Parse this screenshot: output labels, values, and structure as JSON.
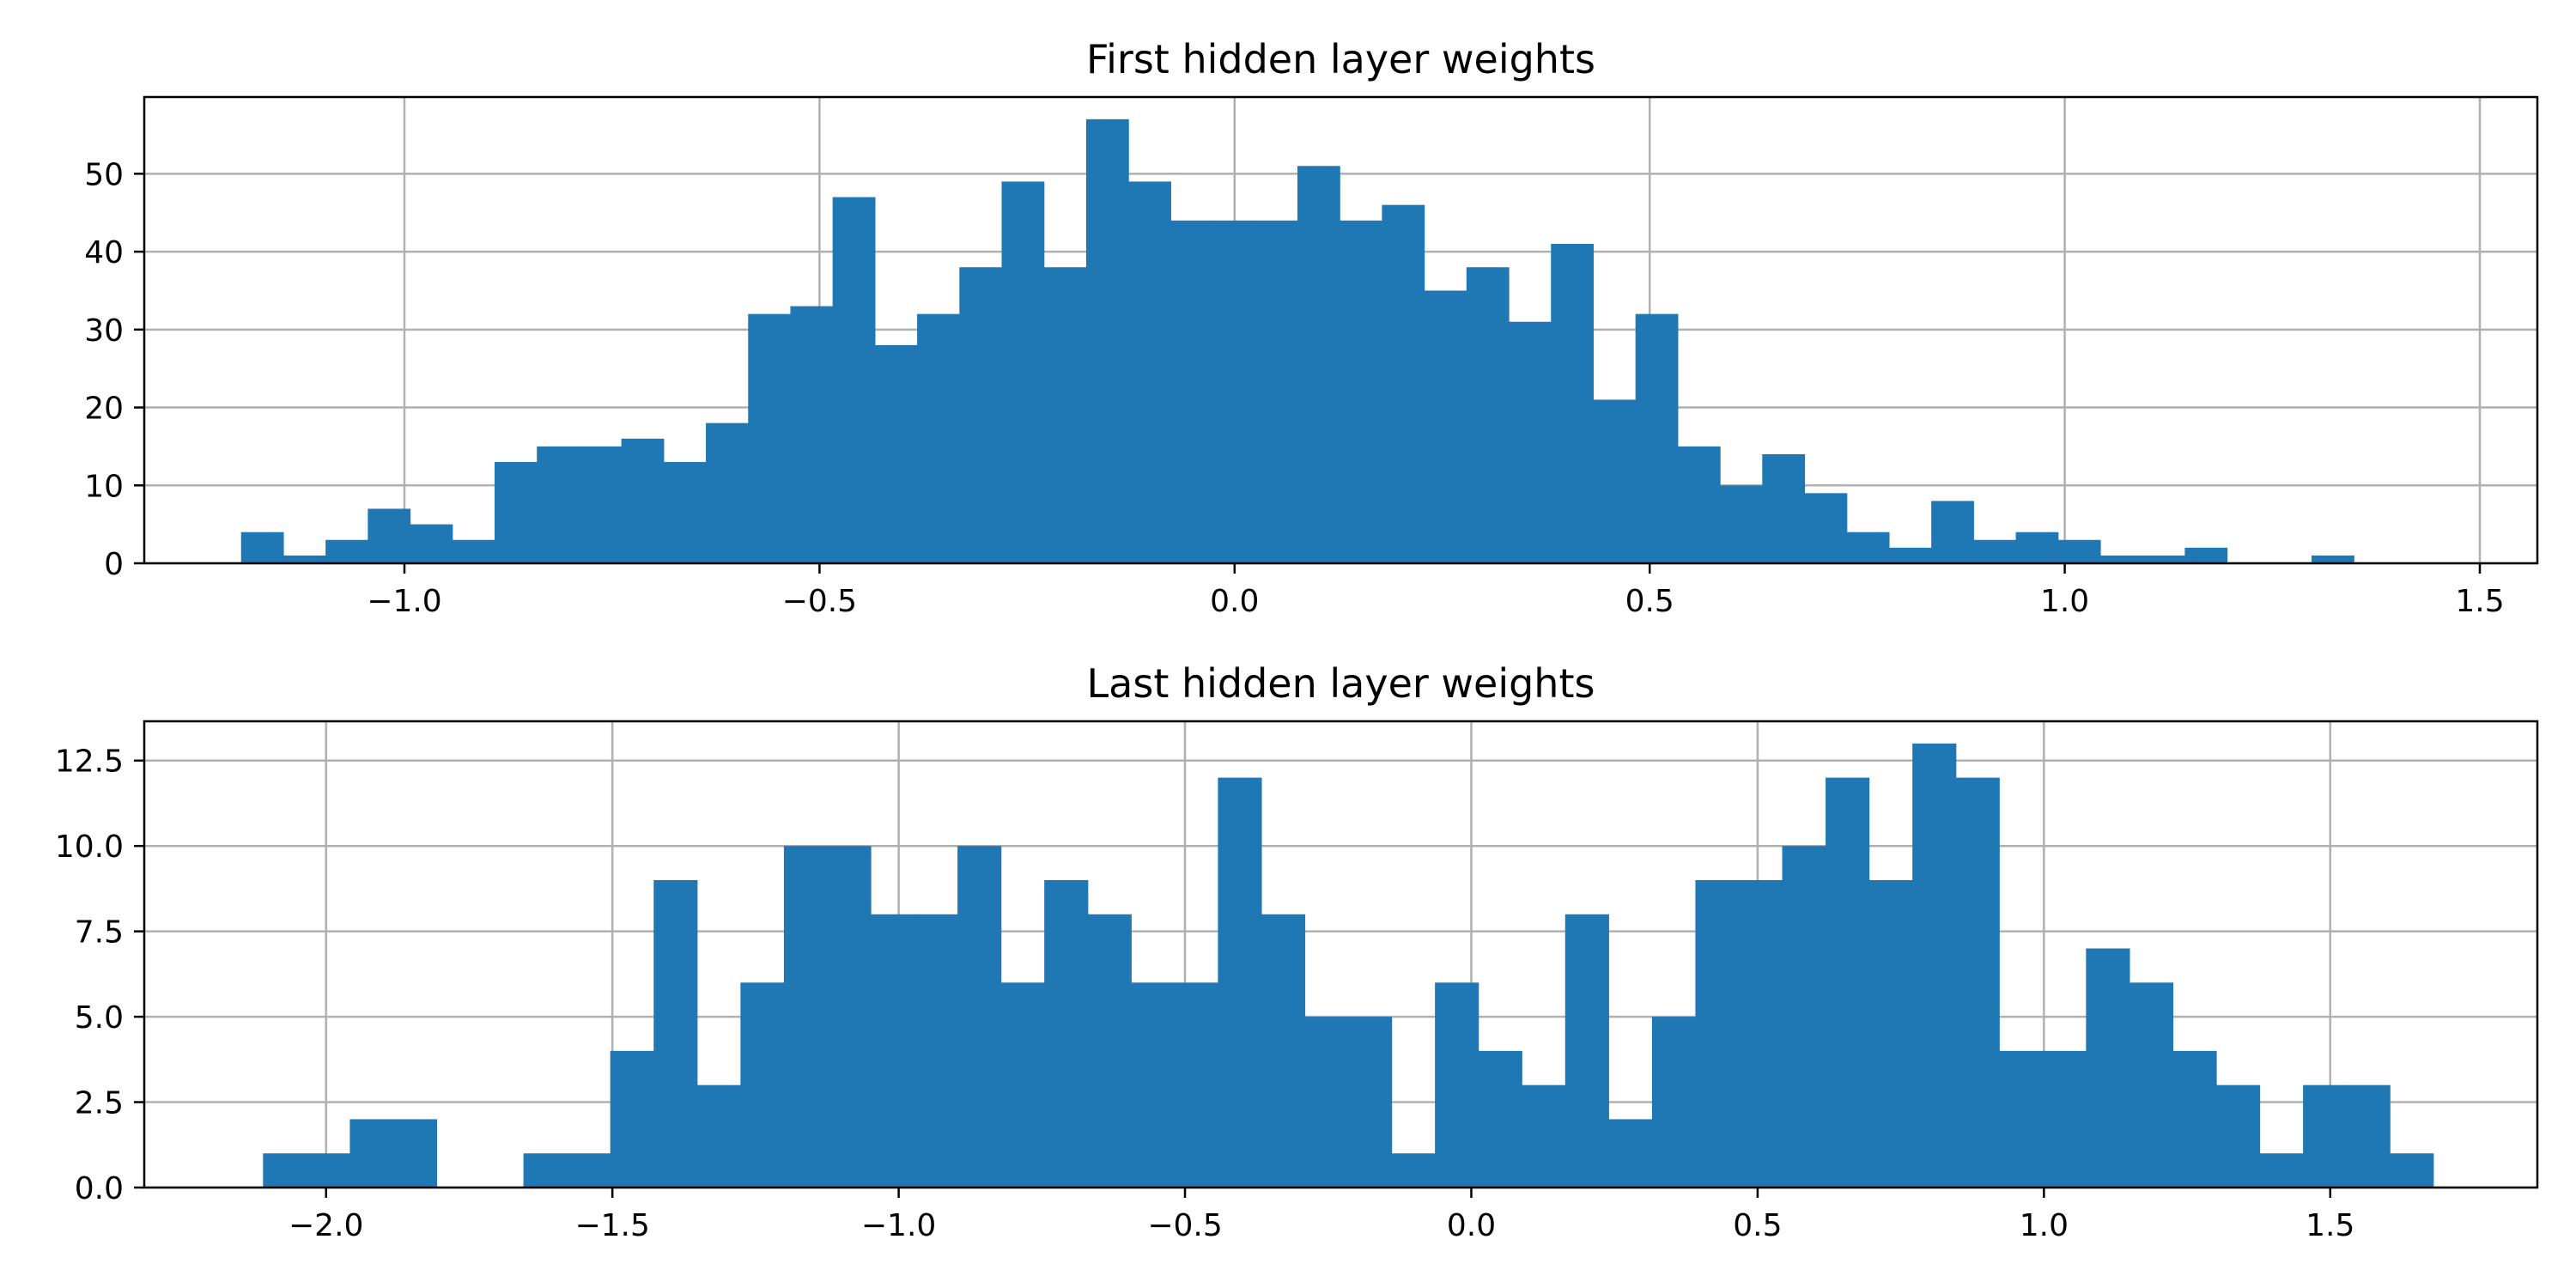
{
  "chart_data": [
    {
      "type": "bar",
      "title": "First hidden layer weights",
      "xlabel": "",
      "ylabel": "",
      "xlim": [
        -1.3134,
        1.5693
      ],
      "ylim": [
        0,
        59.85
      ],
      "grid": true,
      "bar_color": "#1f77b4",
      "bin_start": -1.1968,
      "bin_width": 0.0509,
      "values": [
        4,
        1,
        3,
        7,
        5,
        3,
        13,
        15,
        15,
        16,
        13,
        18,
        32,
        33,
        47,
        28,
        32,
        38,
        49,
        38,
        57,
        49,
        44,
        44,
        44,
        51,
        44,
        46,
        35,
        38,
        31,
        41,
        21,
        32,
        15,
        10,
        14,
        9,
        4,
        2,
        8,
        3,
        4,
        3,
        1,
        1,
        2,
        0,
        0,
        1
      ],
      "x_ticks": [
        -1.0,
        -0.5,
        0.0,
        0.5,
        1.0,
        1.5
      ],
      "x_tick_labels": [
        "−1.0",
        "−0.5",
        "0.0",
        "0.5",
        "1.0",
        "1.5"
      ],
      "y_ticks": [
        0,
        10,
        20,
        30,
        40,
        50
      ],
      "y_tick_labels": [
        "0",
        "10",
        "20",
        "30",
        "40",
        "50"
      ]
    },
    {
      "type": "bar",
      "title": "Last hidden layer weights",
      "xlabel": "",
      "ylabel": "",
      "xlim": [
        -2.3175,
        1.8617
      ],
      "ylim": [
        0,
        13.65
      ],
      "grid": true,
      "bar_color": "#1f77b4",
      "bin_start": -2.1101,
      "bin_width": 0.0758,
      "values": [
        1,
        1,
        2,
        2,
        0,
        0,
        1,
        1,
        4,
        9,
        3,
        6,
        10,
        10,
        8,
        8,
        10,
        6,
        9,
        8,
        6,
        6,
        12,
        8,
        5,
        5,
        1,
        6,
        4,
        3,
        8,
        2,
        5,
        9,
        9,
        10,
        12,
        9,
        13,
        12,
        4,
        4,
        7,
        6,
        4,
        3,
        1,
        3,
        3,
        1
      ],
      "x_ticks": [
        -2.0,
        -1.5,
        -1.0,
        -0.5,
        0.0,
        0.5,
        1.0,
        1.5
      ],
      "x_tick_labels": [
        "−2.0",
        "−1.5",
        "−1.0",
        "−0.5",
        "0.0",
        "0.5",
        "1.0",
        "1.5"
      ],
      "y_ticks": [
        0,
        2.5,
        5,
        7.5,
        10,
        12.5
      ],
      "y_tick_labels": [
        "0.0",
        "2.5",
        "5.0",
        "7.5",
        "10.0",
        "12.5"
      ]
    }
  ]
}
